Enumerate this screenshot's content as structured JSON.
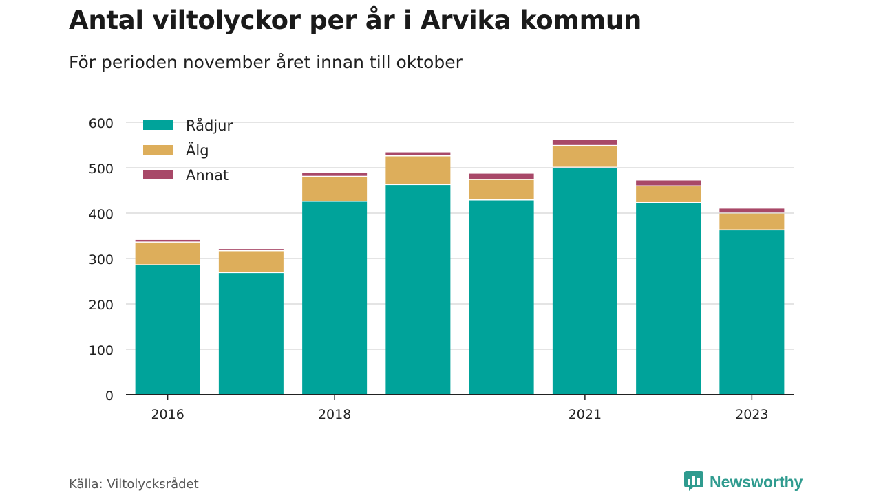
{
  "title": "Antal viltolyckor per år i Arvika kommun",
  "subtitle": "För perioden november året innan till oktober",
  "source": "Källa: Viltolycksrådet",
  "brand": {
    "name": "Newsworthy",
    "icon": "newsworthy-logo-icon",
    "color": "#2f9b8f"
  },
  "colors": {
    "radjur": "#00a39a",
    "alg": "#ddae5b",
    "annat": "#a84868",
    "grid": "#dcdcdc",
    "axis": "#222222"
  },
  "chart_data": {
    "type": "bar",
    "stacked": true,
    "categories": [
      "2016",
      "2017",
      "2018",
      "2019",
      "2020",
      "2021",
      "2022",
      "2023"
    ],
    "x_tick_labels": [
      "2016",
      "",
      "2018",
      "",
      "",
      "2021",
      "",
      "2023"
    ],
    "series": [
      {
        "name": "Rådjur",
        "color": "#00a39a",
        "values": [
          285,
          268,
          425,
          462,
          428,
          500,
          422,
          362
        ]
      },
      {
        "name": "Älg",
        "color": "#ddae5b",
        "values": [
          50,
          48,
          55,
          63,
          45,
          48,
          37,
          37
        ]
      },
      {
        "name": "Annat",
        "color": "#a84868",
        "values": [
          6,
          5,
          8,
          9,
          14,
          14,
          13,
          11
        ]
      }
    ],
    "ylim": [
      0,
      600
    ],
    "yticks": [
      0,
      100,
      200,
      300,
      400,
      500,
      600
    ],
    "grid": true,
    "legend": "top-left",
    "xlabel": "",
    "ylabel": ""
  }
}
